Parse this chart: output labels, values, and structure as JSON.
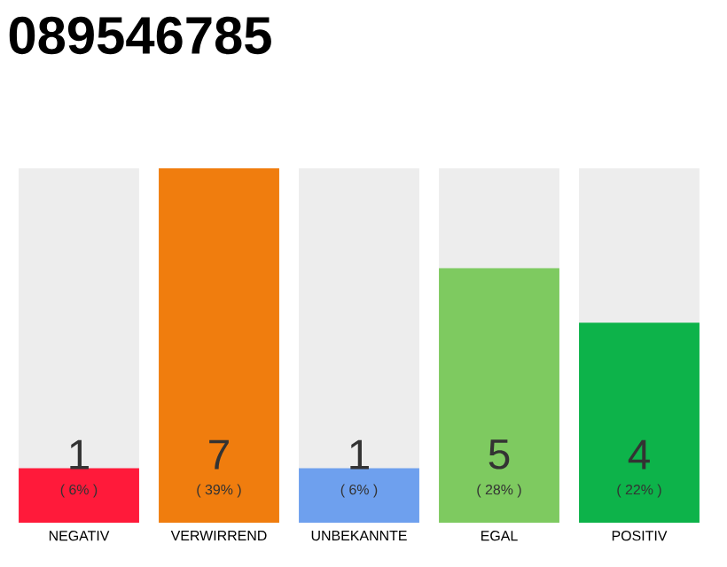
{
  "chart_data": {
    "type": "bar",
    "title": "089546785",
    "categories": [
      "NEGATIV",
      "VERWIRREND",
      "UNBEKANNTE",
      "EGAL",
      "POSITIV"
    ],
    "values": [
      6,
      39,
      6,
      28,
      22
    ],
    "colors": [
      "#ff1a3a",
      "#f07d0e",
      "#6ea0ee",
      "#7eca60",
      "#0db34a"
    ],
    "value_labels": [
      "( 6% )",
      "( 39% )",
      "( 6% )",
      "( 28% )",
      "( 22% )"
    ],
    "annotations": [
      "1",
      "7",
      "1",
      "5",
      "4"
    ]
  }
}
